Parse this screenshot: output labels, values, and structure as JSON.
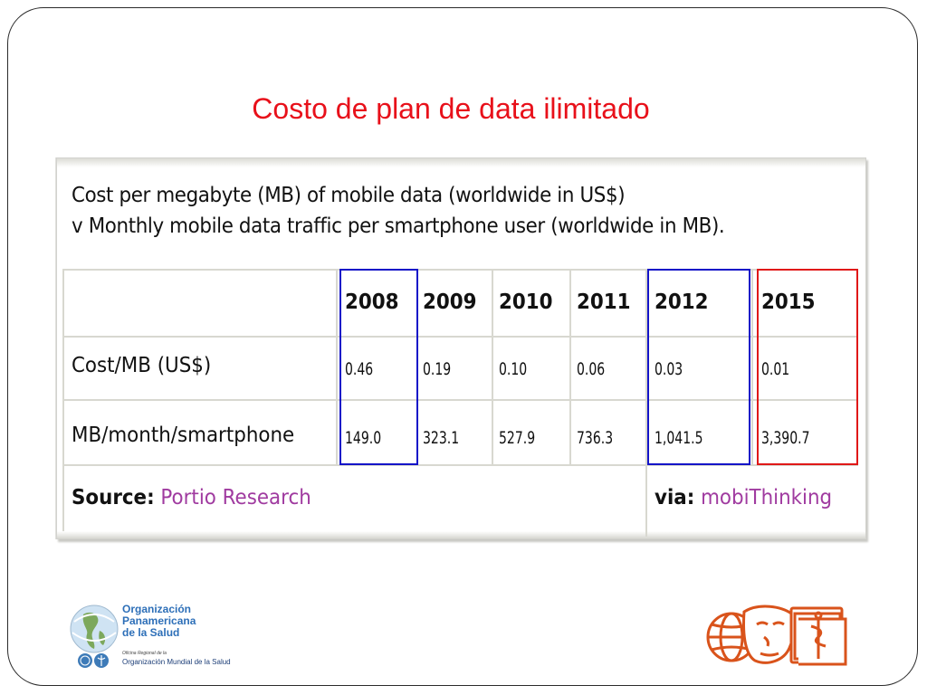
{
  "slide": {
    "title": "Costo de plan de data ilimitado"
  },
  "table": {
    "header_line1": "Cost per megabyte (MB) of mobile data (worldwide in US$)",
    "header_line2": "v Monthly mobile data traffic per smartphone user (worldwide in MB).",
    "years": [
      "2008",
      "2009",
      "2010",
      "2011",
      "2012",
      "2015"
    ],
    "rows": [
      {
        "label": "Cost/MB (US$)",
        "values": [
          "0.46",
          "0.19",
          "0.10",
          "0.06",
          "0.03",
          "0.01"
        ]
      },
      {
        "label": "MB/month/smartphone",
        "values": [
          "149.0",
          "323.1",
          "527.9",
          "736.3",
          "1,041.5",
          "3,390.7"
        ]
      }
    ],
    "source_label": "Source:",
    "source_name": "Portio Research",
    "via_label": "via:",
    "via_name": "mobiThinking",
    "highlights": [
      {
        "year": "2008",
        "color": "#1414c8"
      },
      {
        "year": "2012",
        "color": "#1414c8"
      },
      {
        "year": "2015",
        "color": "#e01818"
      }
    ]
  },
  "footer": {
    "org_line1": "Organización",
    "org_line2": "Panamericana",
    "org_line3": "de la Salud",
    "org_small": "Oficina Regional de la",
    "org_who": "Organización Mundial de la Salud",
    "logo_left_icon": "globe-americas-icon",
    "logo_right_icon": "globe-book-caduceus-icon"
  }
}
